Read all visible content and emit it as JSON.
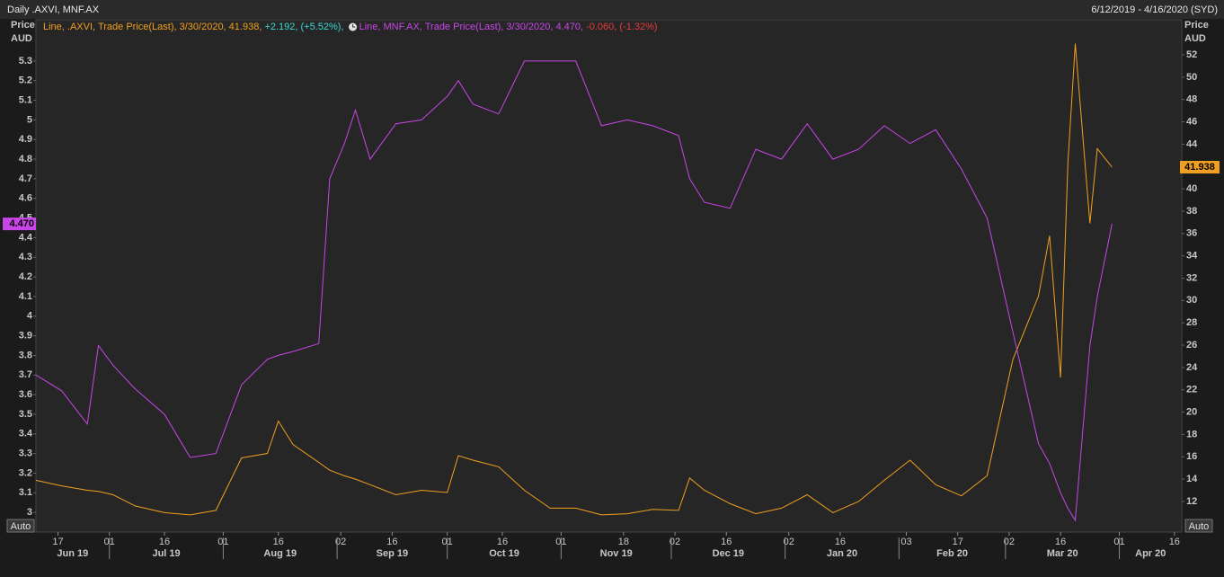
{
  "chart_data": {
    "type": "line",
    "title": "Daily .AXVI, MNF.AX",
    "subtitle": "6/12/2019 - 4/16/2020 (SYD)",
    "ylabel": "Price",
    "yunit": "AUD",
    "y2label": "Price",
    "y2unit": "AUD",
    "y_scale_button": "Auto",
    "y2_scale_button": "Auto",
    "x": [
      "2019-06-11",
      "2019-06-18",
      "2019-06-25",
      "2019-06-28",
      "2019-07-02",
      "2019-07-08",
      "2019-07-16",
      "2019-07-23",
      "2019-07-30",
      "2019-08-06",
      "2019-08-13",
      "2019-08-16",
      "2019-08-20",
      "2019-08-27",
      "2019-08-30",
      "2019-09-03",
      "2019-09-06",
      "2019-09-10",
      "2019-09-17",
      "2019-09-24",
      "2019-10-01",
      "2019-10-04",
      "2019-10-08",
      "2019-10-15",
      "2019-10-22",
      "2019-10-29",
      "2019-11-05",
      "2019-11-12",
      "2019-11-19",
      "2019-11-26",
      "2019-12-03",
      "2019-12-06",
      "2019-12-10",
      "2019-12-17",
      "2019-12-24",
      "2019-12-31",
      "2020-01-07",
      "2020-01-14",
      "2020-01-21",
      "2020-01-28",
      "2020-02-04",
      "2020-02-11",
      "2020-02-18",
      "2020-02-25",
      "2020-03-03",
      "2020-03-10",
      "2020-03-13",
      "2020-03-16",
      "2020-03-18",
      "2020-03-20",
      "2020-03-24",
      "2020-03-26",
      "2020-03-30"
    ],
    "series": [
      {
        "name": "Line, .AXVI, Trade Price(Last), 3/30/2020, 41.938,",
        "change": "+2.192, (+5.52%),",
        "color": "#f0a020",
        "change_color": "#3ad6d6",
        "axis": "y2",
        "values": [
          13.9,
          13.4,
          13.0,
          12.9,
          12.6,
          11.6,
          11.0,
          10.8,
          11.2,
          15.9,
          16.3,
          19.2,
          17.1,
          15.5,
          14.8,
          14.3,
          14.0,
          13.5,
          12.6,
          13.0,
          12.8,
          16.1,
          15.7,
          15.1,
          13.0,
          11.4,
          11.4,
          10.8,
          10.9,
          11.3,
          11.2,
          14.1,
          13.0,
          11.8,
          10.9,
          11.4,
          12.6,
          11.0,
          12.0,
          13.9,
          15.7,
          13.5,
          12.5,
          14.3,
          24.7,
          30.4,
          35.8,
          23.1,
          42.3,
          53.0,
          36.9,
          43.6,
          41.938
        ]
      },
      {
        "name": "Line, MNF.AX, Trade Price(Last), 3/30/2020, 4.470,",
        "change": "-0.060, (-1.32%)",
        "color": "#c846e8",
        "change_color": "#e83a3a",
        "values": [
          3.7,
          3.62,
          3.45,
          3.85,
          3.75,
          3.63,
          3.5,
          3.28,
          3.3,
          3.65,
          3.78,
          3.8,
          3.82,
          3.86,
          4.7,
          4.88,
          5.05,
          4.8,
          4.98,
          5.0,
          5.12,
          5.2,
          5.08,
          5.03,
          5.3,
          5.3,
          5.3,
          4.97,
          5.0,
          4.97,
          4.92,
          4.7,
          4.58,
          4.55,
          4.85,
          4.8,
          4.98,
          4.8,
          4.85,
          4.97,
          4.88,
          4.95,
          4.75,
          4.5,
          3.92,
          3.35,
          3.25,
          3.1,
          3.02,
          2.96,
          3.85,
          4.1,
          4.47
        ],
        "value_labels": [
          null,
          null,
          null,
          null,
          null,
          null,
          null,
          null,
          null,
          null,
          null,
          null,
          null,
          null,
          null,
          null,
          null,
          null,
          null,
          null,
          null,
          null,
          null,
          null,
          null,
          null,
          null,
          null,
          null,
          null,
          null,
          null,
          null,
          null,
          null,
          null,
          null,
          null,
          null,
          null,
          null,
          null,
          null,
          null,
          null,
          null,
          null,
          null,
          null,
          null,
          null,
          null,
          "4.470"
        ]
      }
    ],
    "xlim": [
      "2019-06-11",
      "2020-04-18"
    ],
    "xticks": [
      {
        "value": "2019-06-17",
        "label": "17"
      },
      {
        "value": "2019-07-01",
        "label": "01"
      },
      {
        "value": "2019-07-16",
        "label": "16"
      },
      {
        "value": "2019-08-01",
        "label": "01"
      },
      {
        "value": "2019-08-16",
        "label": "16"
      },
      {
        "value": "2019-09-02",
        "label": "02"
      },
      {
        "value": "2019-09-16",
        "label": "16"
      },
      {
        "value": "2019-10-01",
        "label": "01"
      },
      {
        "value": "2019-10-16",
        "label": "16"
      },
      {
        "value": "2019-11-01",
        "label": "01"
      },
      {
        "value": "2019-11-18",
        "label": "18"
      },
      {
        "value": "2019-12-02",
        "label": "02"
      },
      {
        "value": "2019-12-16",
        "label": "16"
      },
      {
        "value": "2020-01-02",
        "label": "02"
      },
      {
        "value": "2020-01-16",
        "label": "16"
      },
      {
        "value": "2020-02-03",
        "label": "03"
      },
      {
        "value": "2020-02-17",
        "label": "17"
      },
      {
        "value": "2020-03-02",
        "label": "02"
      },
      {
        "value": "2020-03-16",
        "label": "16"
      },
      {
        "value": "2020-04-01",
        "label": "01"
      },
      {
        "value": "2020-04-16",
        "label": "16"
      }
    ],
    "x_groups": [
      {
        "value": "2019-06",
        "label": "Jun 19"
      },
      {
        "value": "2019-07",
        "label": "Jul 19"
      },
      {
        "value": "2019-08",
        "label": "Aug 19"
      },
      {
        "value": "2019-09",
        "label": "Sep 19"
      },
      {
        "value": "2019-10",
        "label": "Oct 19"
      },
      {
        "value": "2019-11",
        "label": "Nov 19"
      },
      {
        "value": "2019-12",
        "label": "Dec 19"
      },
      {
        "value": "2020-01",
        "label": "Jan 20"
      },
      {
        "value": "2020-02",
        "label": "Feb 20"
      },
      {
        "value": "2020-03",
        "label": "Mar 20"
      },
      {
        "value": "2020-04",
        "label": "Apr 20"
      }
    ],
    "ylim": [
      2.9,
      5.51
    ],
    "yticks": [
      3,
      3.1,
      3.2,
      3.3,
      3.4,
      3.5,
      3.6,
      3.7,
      3.8,
      3.9,
      4,
      4.1,
      4.2,
      4.3,
      4.4,
      4.5,
      4.6,
      4.7,
      4.8,
      4.9,
      5,
      5.1,
      5.2,
      5.3
    ],
    "y2lim": [
      9.26,
      55.14
    ],
    "y2ticks": [
      12,
      14,
      16,
      18,
      20,
      22,
      24,
      26,
      28,
      30,
      32,
      34,
      36,
      38,
      40,
      42,
      44,
      46,
      48,
      50,
      52
    ],
    "grid": false
  }
}
